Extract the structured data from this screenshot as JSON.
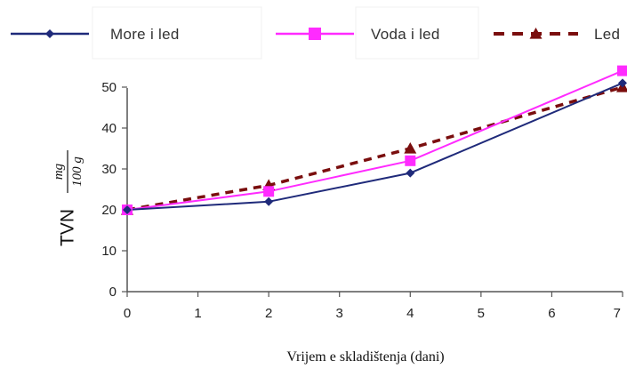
{
  "chart_data": {
    "type": "line",
    "x": [
      0,
      2,
      4,
      7
    ],
    "series": [
      {
        "name": "More i led",
        "values": [
          20,
          22,
          29,
          51
        ],
        "color": "#1f2a7a",
        "marker": "diamond",
        "dash": "solid"
      },
      {
        "name": "Voda i led",
        "values": [
          20,
          24.5,
          32,
          54
        ],
        "color": "#ff2bff",
        "marker": "square",
        "dash": "solid"
      },
      {
        "name": "Led",
        "values": [
          20,
          26,
          35,
          50
        ],
        "color": "#7a0e0e",
        "marker": "triangle",
        "dash": "dashed"
      }
    ],
    "xlabel": "Vrijem e skladištenja (dani)",
    "ylabel": "TVN",
    "ylabel_unit_numerator": "mg",
    "ylabel_unit_denominator": "100 g",
    "xlim": [
      0,
      7
    ],
    "ylim": [
      0,
      55
    ],
    "xticks": [
      "0",
      "1",
      "2",
      "3",
      "4",
      "5",
      "6",
      "7"
    ],
    "yticks": [
      "0",
      "10",
      "20",
      "30",
      "40",
      "50"
    ],
    "grid": false,
    "legend_position": "top"
  }
}
